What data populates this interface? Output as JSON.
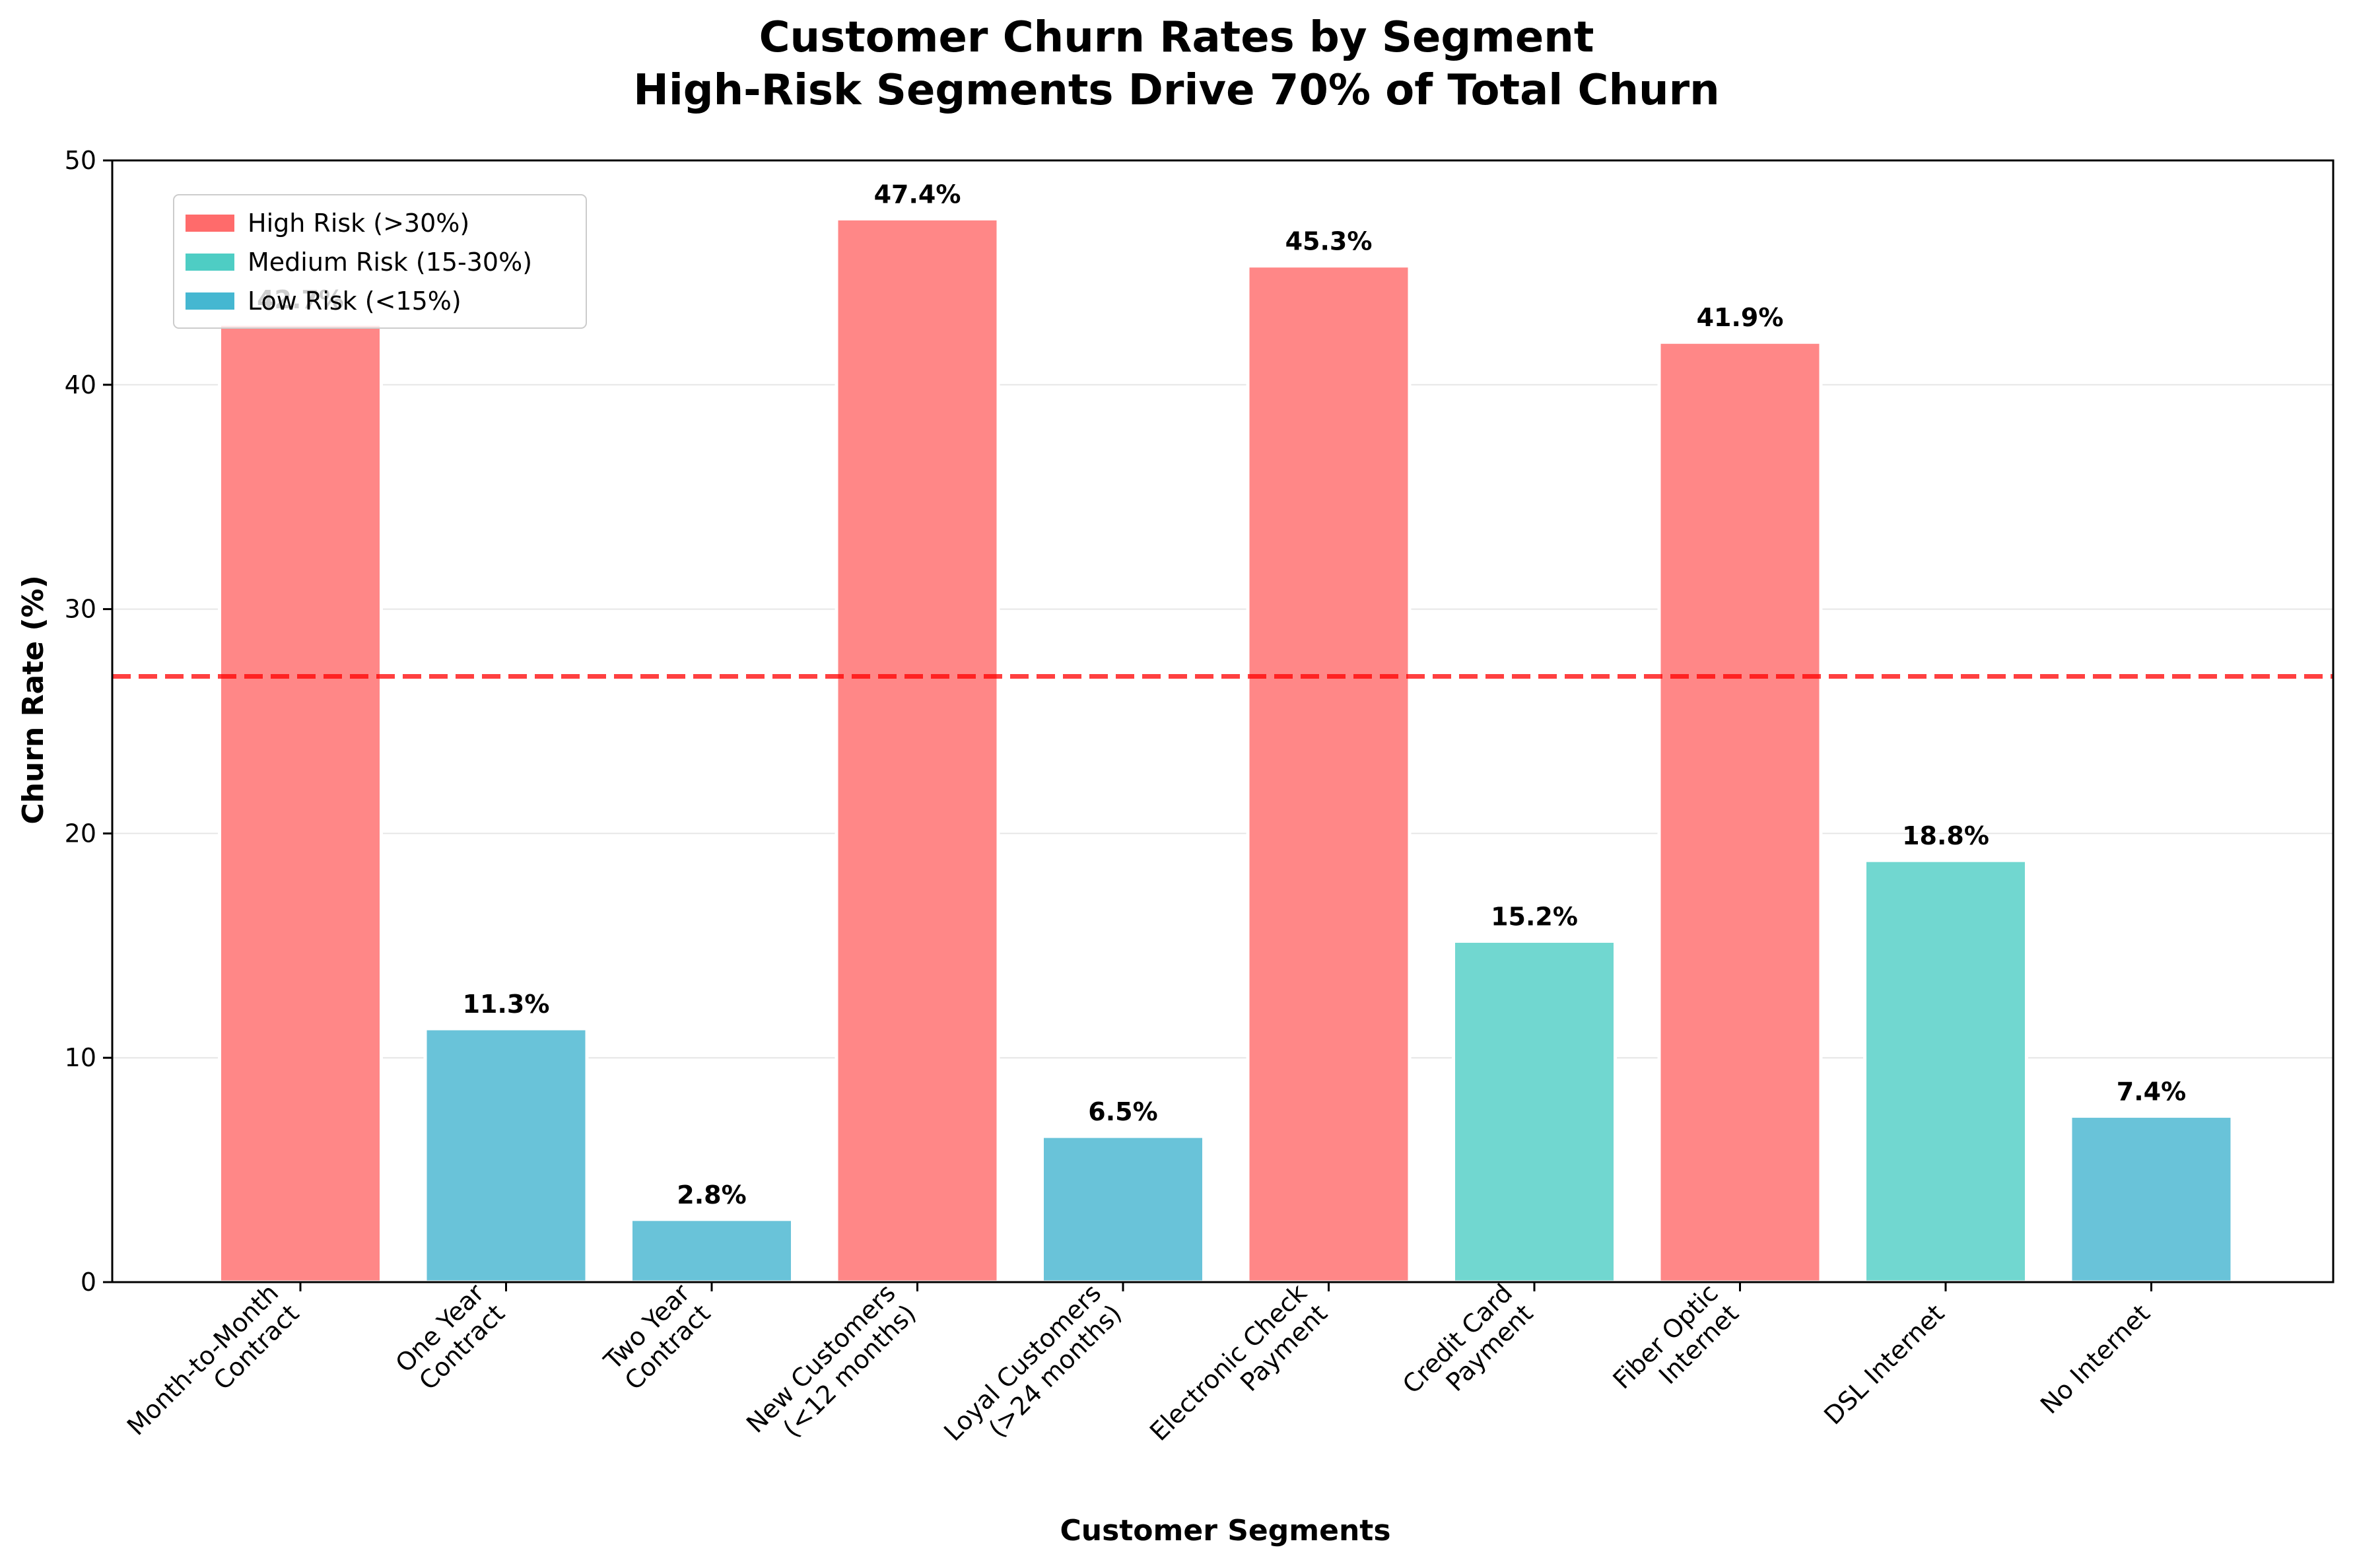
{
  "chart_data": {
    "type": "bar",
    "title": "Customer Churn Rates by Segment",
    "subtitle": "High-Risk Segments Drive 70% of Total Churn",
    "xlabel": "Customer Segments",
    "ylabel": "Churn Rate (%)",
    "ylim": [
      0,
      50
    ],
    "yticks": [
      0,
      10,
      20,
      30,
      40,
      50
    ],
    "grid": "horizontal",
    "legend_position": "top-left",
    "categories": [
      [
        "Month-to-Month",
        "Contract"
      ],
      [
        "One Year",
        "Contract"
      ],
      [
        "Two Year",
        "Contract"
      ],
      [
        "New Customers",
        "(<12 months)"
      ],
      [
        "Loyal Customers",
        "(>24 months)"
      ],
      [
        "Electronic Check",
        "Payment"
      ],
      [
        "Credit Card",
        "Payment"
      ],
      [
        "Fiber Optic",
        "Internet"
      ],
      [
        "DSL Internet"
      ],
      [
        "No Internet"
      ]
    ],
    "values": [
      42.7,
      11.3,
      2.8,
      47.4,
      6.5,
      45.3,
      15.2,
      41.9,
      18.8,
      7.4
    ],
    "value_labels": [
      "42.7%",
      "11.3%",
      "2.8%",
      "47.4%",
      "6.5%",
      "45.3%",
      "15.2%",
      "41.9%",
      "18.8%",
      "7.4%"
    ],
    "risk": [
      "high",
      "low",
      "low",
      "high",
      "low",
      "high",
      "medium",
      "high",
      "medium",
      "low"
    ],
    "reference_line": {
      "value": 27,
      "color": "#ff0000",
      "style": "dashed"
    },
    "legend": [
      {
        "key": "high",
        "label": "High Risk (>30%)",
        "color": "#ff6b6b"
      },
      {
        "key": "medium",
        "label": "Medium Risk (15-30%)",
        "color": "#4ecdc4"
      },
      {
        "key": "low",
        "label": "Low Risk (<15%)",
        "color": "#45b7d1"
      }
    ],
    "bar_colors": {
      "high": "#ff8787",
      "medium": "#71d7d0",
      "low": "#69c3d9"
    }
  }
}
